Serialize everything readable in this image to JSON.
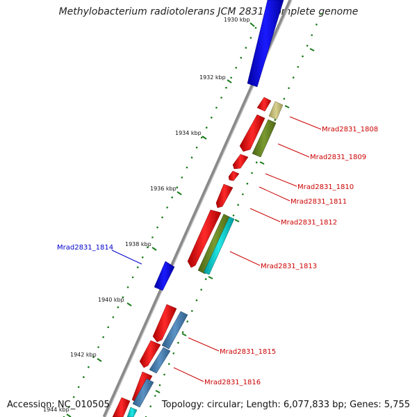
{
  "title": "Methylobacterium radiotolerans JCM 2831, complete genome",
  "footer": {
    "accession": "Accession: NC_010505",
    "summary": "Topology: circular; Length: 6,077,833 bp; Genes: 5,755"
  },
  "colors": {
    "backbone": "#8a8a8a",
    "tick": "#1a7a1a",
    "label_red": "#cc0000",
    "label_blue": "#0000cc",
    "gene_red": "#ee0000",
    "gene_blue": "#0000ee",
    "gene_olive": "#6b8e23",
    "gene_khaki": "#c8c07a",
    "gene_steel": "#4682b4",
    "gene_cyan": "#00cccc"
  },
  "ticks": [
    {
      "label": "1930 kbp"
    },
    {
      "label": "1932 kbp"
    },
    {
      "label": "1934 kbp"
    },
    {
      "label": "1936 kbp"
    },
    {
      "label": "1938 kbp"
    },
    {
      "label": "1940 kbp"
    },
    {
      "label": "1942 kbp"
    },
    {
      "label": "1944 kbp"
    }
  ],
  "gene_labels": [
    {
      "text": "Mrad2831_1808",
      "color": "red"
    },
    {
      "text": "Mrad2831_1809",
      "color": "red"
    },
    {
      "text": "Mrad2831_1810",
      "color": "red"
    },
    {
      "text": "Mrad2831_1811",
      "color": "red"
    },
    {
      "text": "Mrad2831_1812",
      "color": "red"
    },
    {
      "text": "Mrad2831_1813",
      "color": "red"
    },
    {
      "text": "Mrad2831_1814",
      "color": "blue"
    },
    {
      "text": "Mrad2831_1815",
      "color": "red"
    },
    {
      "text": "Mrad2831_1816",
      "color": "red"
    }
  ]
}
